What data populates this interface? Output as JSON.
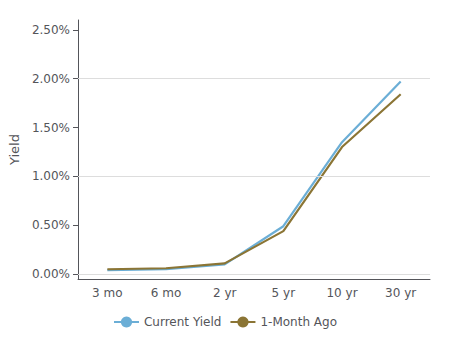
{
  "chart_data": {
    "type": "line",
    "categories": [
      "3 mo",
      "6 mo",
      "2 yr",
      "5 yr",
      "10 yr",
      "30 yr"
    ],
    "series": [
      {
        "name": "Current Yield",
        "color": "#6baed6",
        "values": [
          0.0004,
          0.0005,
          0.001,
          0.0049,
          0.0135,
          0.0197
        ]
      },
      {
        "name": "1-Month Ago",
        "color": "#8b7535",
        "values": [
          0.0005,
          0.0006,
          0.0011,
          0.0044,
          0.013,
          0.0184
        ]
      }
    ],
    "ylabel": "Yield",
    "ylim": [
      -0.0005,
      0.026
    ],
    "yticks": [
      {
        "value": 0.0,
        "label": "0.00%"
      },
      {
        "value": 0.005,
        "label": "0.50%"
      },
      {
        "value": 0.01,
        "label": "1.00%"
      },
      {
        "value": 0.015,
        "label": "1.50%"
      },
      {
        "value": 0.02,
        "label": "2.00%"
      },
      {
        "value": 0.025,
        "label": "2.50%"
      }
    ],
    "grid": true,
    "legend": "bottom"
  }
}
